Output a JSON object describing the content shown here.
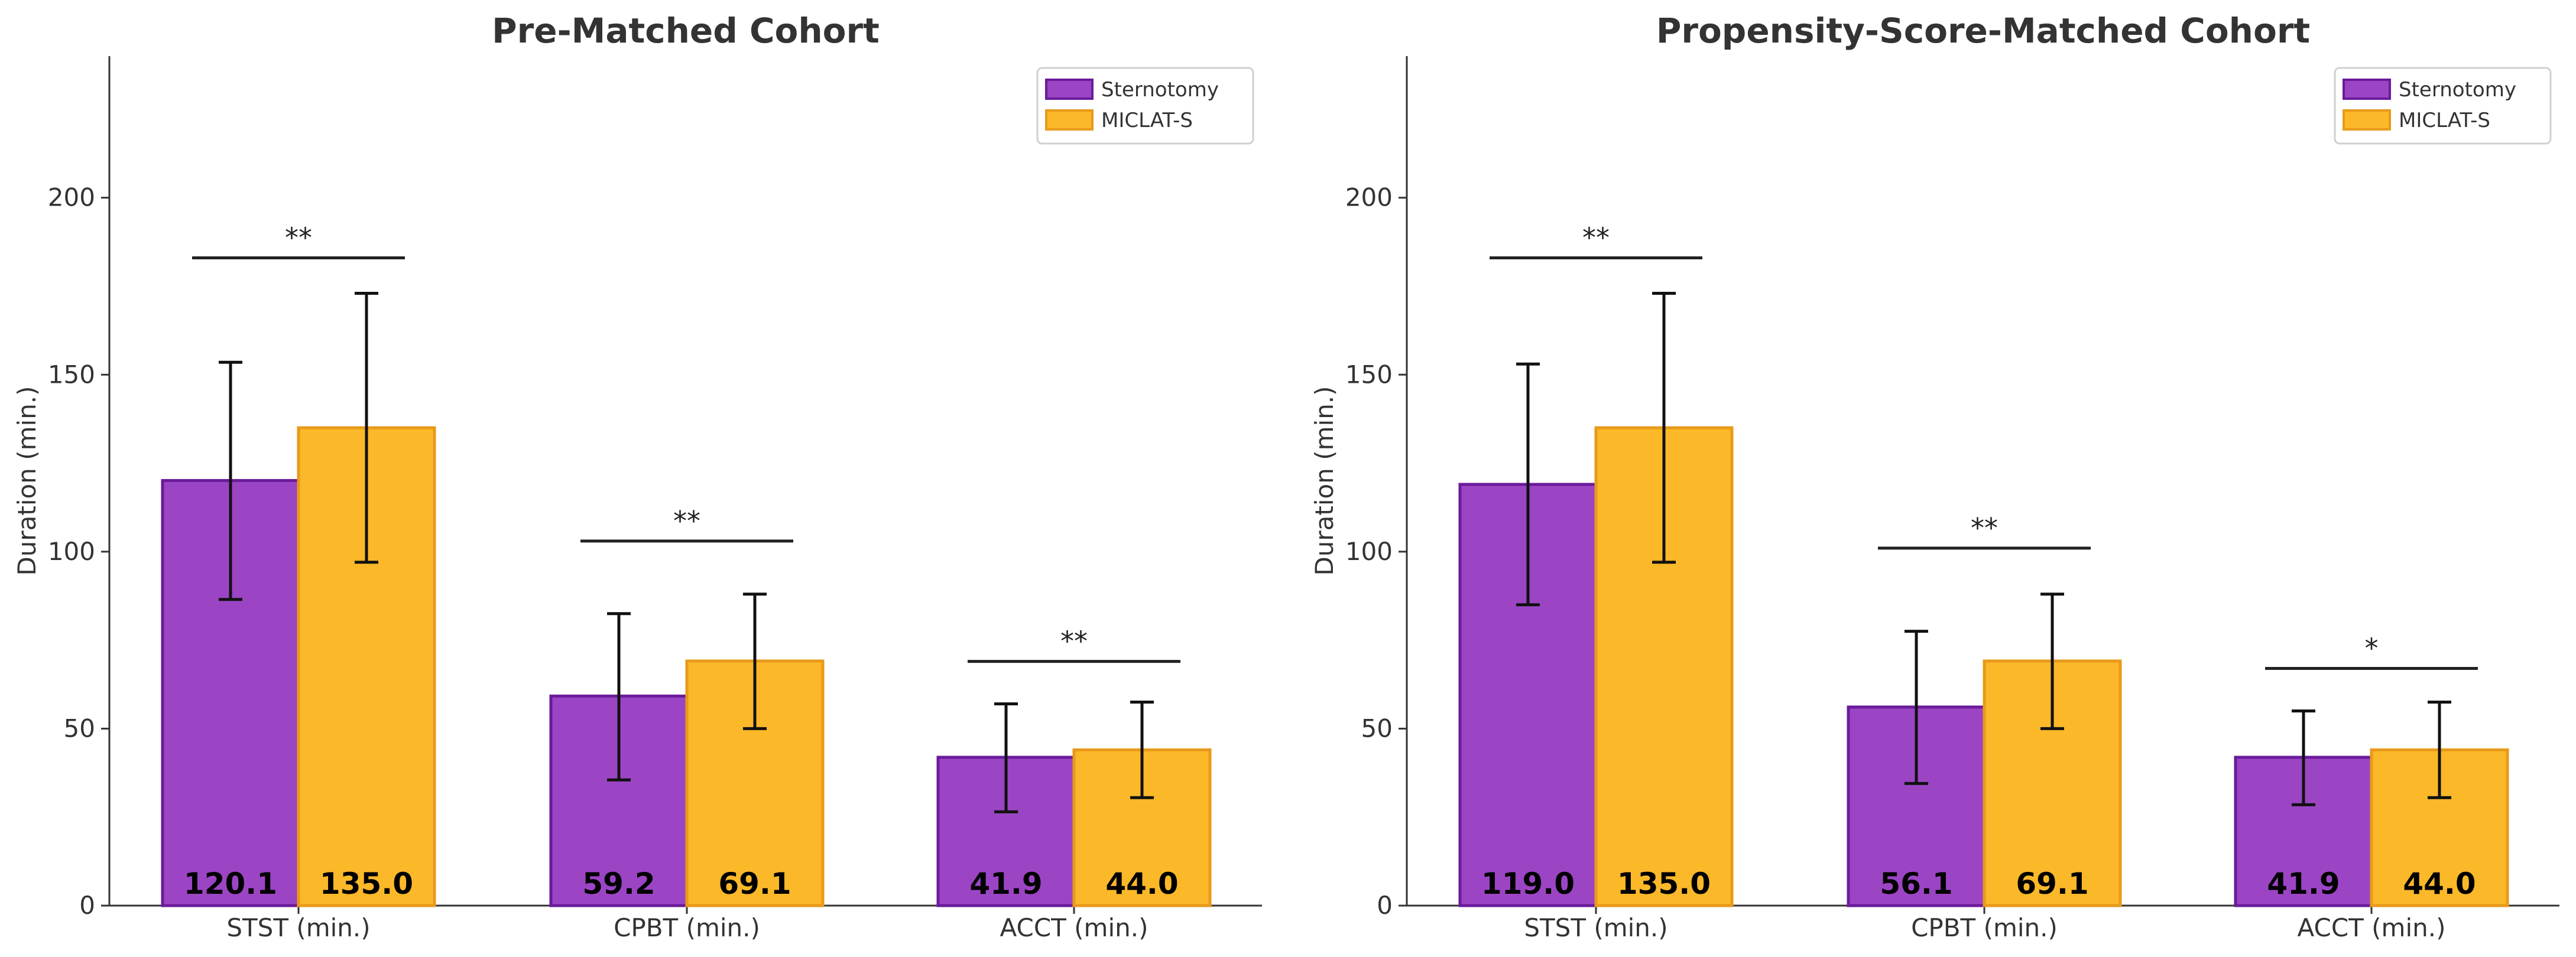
{
  "chart_data": [
    {
      "type": "bar",
      "title": "Pre-Matched Cohort",
      "xlabel": "",
      "ylabel": "Duration (min.)",
      "ylim": [
        0,
        240
      ],
      "yticks": [
        0,
        50,
        100,
        150,
        200
      ],
      "categories": [
        "STST (min.)",
        "CPBT (min.)",
        "ACCT (min.)"
      ],
      "series": [
        {
          "name": "Sternotomy",
          "values": [
            120.1,
            59.2,
            41.9
          ],
          "value_labels": [
            "120.1",
            "59.2",
            "41.9"
          ],
          "err_low": [
            86.5,
            35.5,
            26.5
          ],
          "err_high": [
            153.5,
            82.5,
            57.0
          ],
          "color": "#9b45c4",
          "edge": "#6a1b9a"
        },
        {
          "name": "MICLAT-S",
          "values": [
            135.0,
            69.1,
            44.0
          ],
          "value_labels": [
            "135.0",
            "69.1",
            "44.0"
          ],
          "err_low": [
            97.0,
            50.0,
            30.5
          ],
          "err_high": [
            173.0,
            88.0,
            57.5
          ],
          "color": "#fbb829",
          "edge": "#e89a1a"
        }
      ],
      "significance": [
        {
          "label": "**",
          "y": 183
        },
        {
          "label": "**",
          "y": 103
        },
        {
          "label": "**",
          "y": 69
        }
      ],
      "legend_position": "top-right"
    },
    {
      "type": "bar",
      "title": "Propensity-Score-Matched Cohort",
      "xlabel": "",
      "ylabel": "Duration (min.)",
      "ylim": [
        0,
        240
      ],
      "yticks": [
        0,
        50,
        100,
        150,
        200
      ],
      "categories": [
        "STST (min.)",
        "CPBT (min.)",
        "ACCT (min.)"
      ],
      "series": [
        {
          "name": "Sternotomy",
          "values": [
            119.0,
            56.1,
            41.9
          ],
          "value_labels": [
            "119.0",
            "56.1",
            "41.9"
          ],
          "err_low": [
            85.0,
            34.5,
            28.5
          ],
          "err_high": [
            153.0,
            77.5,
            55.0
          ],
          "color": "#9b45c4",
          "edge": "#6a1b9a"
        },
        {
          "name": "MICLAT-S",
          "values": [
            135.0,
            69.1,
            44.0
          ],
          "value_labels": [
            "135.0",
            "69.1",
            "44.0"
          ],
          "err_low": [
            97.0,
            50.0,
            30.5
          ],
          "err_high": [
            173.0,
            88.0,
            57.5
          ],
          "color": "#fbb829",
          "edge": "#e89a1a"
        }
      ],
      "significance": [
        {
          "label": "**",
          "y": 183
        },
        {
          "label": "**",
          "y": 101
        },
        {
          "label": "*",
          "y": 67
        }
      ],
      "legend_position": "top-right"
    }
  ]
}
